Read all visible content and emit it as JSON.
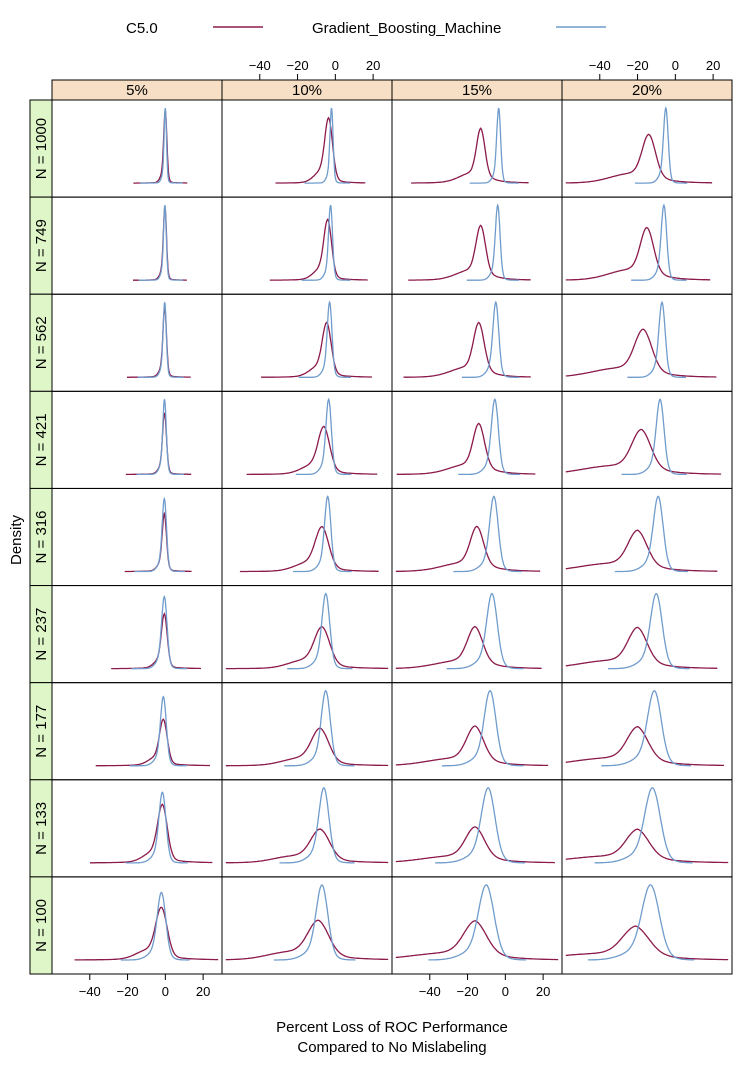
{
  "chart_data": {
    "type": "line",
    "subtype": "density-lattice",
    "title": "",
    "xlabel": "Percent Loss of ROC Performance",
    "xlabel_line2": "Compared to No Mislabeling",
    "ylabel": "Density",
    "xlim": [
      -60,
      30
    ],
    "x_ticks": [
      -40,
      -20,
      0,
      20
    ],
    "x_tick_labels": [
      "−40",
      "−20",
      "0",
      "20"
    ],
    "columns": [
      "5%",
      "10%",
      "15%",
      "20%"
    ],
    "rows": [
      "N = 1000",
      "N = 749",
      "N = 562",
      "N = 421",
      "N = 316",
      "N = 237",
      "N = 177",
      "N = 133",
      "N = 100"
    ],
    "legend": {
      "position": "top",
      "entries": [
        {
          "name": "C5.0",
          "color": "#8b1a4b"
        },
        {
          "name": "Gradient_Boosting_Machine",
          "color": "#6f9ccc"
        }
      ]
    },
    "series": [
      {
        "name": "C5.0",
        "color": "#8b1a4b",
        "panels": [
          [
            [
              0.0,
              0.8,
              -1.0,
              -1.0,
              -2,
              0.5,
              3,
              0.97,
              5,
              0.02,
              0
            ],
            [
              -3.5,
              2,
              -1.0,
              -1.8,
              -2,
              0.55,
              3,
              0.87,
              7,
              0.07,
              0
            ],
            [
              -13,
              2.2,
              -2.0,
              -2.2,
              -3,
              0.5,
              6,
              0.73,
              10,
              0.11,
              0
            ],
            [
              -14,
              3.5,
              -2.0,
              -3.0,
              -3,
              0.55,
              7,
              0.65,
              12,
              0.14,
              0
            ]
          ],
          [
            [
              -0.2,
              0.8,
              -1.0,
              -1.0,
              -2,
              0.5,
              3,
              0.98,
              5,
              0.02,
              0
            ],
            [
              -4.0,
              2,
              -1.0,
              -1.8,
              -2,
              0.55,
              3,
              0.81,
              8,
              0.07,
              0
            ],
            [
              -13,
              2.5,
              -2.0,
              -2.3,
              -3,
              0.5,
              6,
              0.73,
              10,
              0.12,
              0
            ],
            [
              -15,
              3.5,
              -2.0,
              -3.0,
              -3,
              0.55,
              7,
              0.7,
              12,
              0.16,
              0
            ]
          ],
          [
            [
              -0.3,
              0.9,
              -1.0,
              -1.0,
              -2,
              0.5,
              3,
              0.93,
              6,
              0.03,
              0
            ],
            [
              -4.5,
              2.3,
              -1.0,
              -2.0,
              -2,
              0.55,
              3,
              0.73,
              9,
              0.09,
              0
            ],
            [
              -14,
              2.8,
              -2.0,
              -2.5,
              -3,
              0.5,
              6,
              0.73,
              10,
              0.13,
              0
            ],
            [
              -17,
              4.5,
              -2.0,
              -3.2,
              -3,
              0.55,
              7,
              0.64,
              13,
              0.18,
              0
            ]
          ],
          [
            [
              -0.4,
              1,
              -1.0,
              -1.0,
              -2,
              0.5,
              3,
              0.82,
              6,
              0.03,
              0
            ],
            [
              -6,
              3,
              -1.0,
              -2.0,
              -2,
              0.55,
              3,
              0.64,
              10,
              0.12,
              0
            ],
            [
              -14,
              3,
              -2.0,
              -2.5,
              -3,
              0.5,
              6,
              0.68,
              11,
              0.16,
              0
            ],
            [
              -18,
              5,
              -2.0,
              -3.5,
              -3,
              0.55,
              7,
              0.6,
              14,
              0.21,
              0
            ]
          ],
          [
            [
              -0.5,
              1.1,
              -1.0,
              -1.2,
              -2,
              0.5,
              3,
              0.77,
              6,
              0.04,
              0
            ],
            [
              -7,
              3.5,
              -1.0,
              -2.2,
              -2,
              0.55,
              3,
              0.6,
              10,
              0.14,
              0
            ],
            [
              -15,
              3.5,
              -2.0,
              -2.5,
              -3,
              0.5,
              6,
              0.6,
              12,
              0.18,
              0
            ],
            [
              -20,
              5,
              -2.0,
              -3.5,
              -3,
              0.55,
              7,
              0.55,
              14,
              0.24,
              0
            ]
          ],
          [
            [
              -0.5,
              1.5,
              -1.0,
              -1.5,
              -2,
              0.5,
              3,
              0.73,
              8,
              0.05,
              0
            ],
            [
              -7,
              4,
              -1.0,
              -2.5,
              -2,
              0.55,
              3,
              0.56,
              12,
              0.15,
              0
            ],
            [
              -16,
              4,
              -2.0,
              -2.5,
              -3,
              0.5,
              6,
              0.56,
              12,
              0.2,
              0
            ],
            [
              -20,
              5,
              -2.0,
              -3.5,
              -3,
              0.55,
              7,
              0.55,
              14,
              0.26,
              0
            ]
          ],
          [
            [
              -1.0,
              2,
              -1.0,
              -2.0,
              -2,
              0.5,
              3,
              0.62,
              10,
              0.07,
              0
            ],
            [
              -8,
              4.5,
              -1.0,
              -2.5,
              -2,
              0.55,
              3,
              0.5,
              13,
              0.17,
              0
            ],
            [
              -16,
              4.5,
              -2.0,
              -3.0,
              -3,
              0.5,
              6,
              0.53,
              13,
              0.22,
              0
            ],
            [
              -20,
              5.5,
              -2.0,
              -3.5,
              -3,
              0.55,
              7,
              0.52,
              15,
              0.28,
              0
            ]
          ],
          [
            [
              -1.5,
              2.5,
              -1.0,
              -2.0,
              -2,
              0.5,
              3,
              0.78,
              10,
              0.1,
              0
            ],
            [
              -8,
              5,
              -1.0,
              -3.0,
              -2,
              0.55,
              3,
              0.45,
              14,
              0.2,
              0
            ],
            [
              -16,
              5,
              -2.0,
              -3.0,
              -3,
              0.5,
              6,
              0.48,
              14,
              0.24,
              0
            ],
            [
              -20,
              6,
              -2.0,
              -3.5,
              -3,
              0.55,
              7,
              0.45,
              16,
              0.3,
              0
            ]
          ],
          [
            [
              -2.0,
              3,
              -1.0,
              -2.5,
              -2,
              0.5,
              3,
              0.7,
              12,
              0.1,
              0
            ],
            [
              -9,
              5.5,
              -1.0,
              -3.0,
              -2,
              0.55,
              3,
              0.53,
              15,
              0.22,
              0
            ],
            [
              -16,
              6,
              -2.0,
              -3.0,
              -3,
              0.5,
              6,
              0.52,
              15,
              0.26,
              0
            ],
            [
              -21,
              7,
              -2.0,
              -3.5,
              -3,
              0.55,
              7,
              0.45,
              16,
              0.32,
              0
            ]
          ]
        ]
      },
      {
        "name": "Gradient_Boosting_Machine",
        "color": "#6f9ccc",
        "panels": [
          [
            [
              0.0,
              0.6,
              -1.0,
              -1.0,
              -2,
              0.5,
              3,
              1.0,
              4,
              0.01,
              0
            ],
            [
              -2.0,
              0.8,
              -1.0,
              -1.0,
              -2,
              0.5,
              3,
              1.0,
              4,
              0.01,
              0
            ],
            [
              -3.5,
              1.0,
              -1.0,
              -1.0,
              -2,
              0.5,
              3,
              1.0,
              4,
              0.01,
              0
            ],
            [
              -5,
              1.2,
              -1.0,
              -1.0,
              -2,
              0.5,
              3,
              1.0,
              4,
              0.01,
              0
            ]
          ],
          [
            [
              -0.2,
              0.7,
              -1.0,
              -1.0,
              -2,
              0.5,
              3,
              1.0,
              4,
              0.01,
              0
            ],
            [
              -2.5,
              1.0,
              -1.0,
              -1.0,
              -2,
              0.5,
              3,
              1.0,
              4,
              0.01,
              0
            ],
            [
              -4.0,
              1.2,
              -1.0,
              -1.0,
              -2,
              0.5,
              3,
              1.0,
              4,
              0.01,
              0
            ],
            [
              -6,
              1.4,
              -1.0,
              -1.0,
              -2,
              0.5,
              3,
              1.0,
              4,
              0.01,
              0
            ]
          ],
          [
            [
              -0.3,
              0.8,
              -1.0,
              -1.0,
              -2,
              0.5,
              3,
              1.0,
              4,
              0.01,
              0
            ],
            [
              -3,
              1.2,
              -1.0,
              -1.0,
              -2,
              0.5,
              3,
              1.0,
              4,
              0.01,
              0
            ],
            [
              -5,
              1.5,
              -1.0,
              -1.0,
              -2,
              0.5,
              3,
              1.0,
              4,
              0.01,
              0
            ],
            [
              -7,
              1.6,
              -1.0,
              -1.0,
              -2,
              0.5,
              3,
              1.0,
              4,
              0.01,
              0
            ]
          ],
          [
            [
              -0.4,
              0.9,
              -1.0,
              -1.0,
              -2,
              0.5,
              3,
              1.0,
              4,
              0.01,
              0
            ],
            [
              -3.5,
              1.4,
              -1.0,
              -1.0,
              -2,
              0.5,
              3,
              1.0,
              4,
              0.01,
              0
            ],
            [
              -5.5,
              1.8,
              -1.0,
              -1.0,
              -2,
              0.5,
              3,
              1.0,
              4,
              0.01,
              0
            ],
            [
              -8,
              2.0,
              -1.0,
              -1.0,
              -2,
              0.5,
              3,
              1.0,
              4,
              0.01,
              0
            ]
          ],
          [
            [
              -0.5,
              1.1,
              -1.0,
              -1.0,
              -2,
              0.5,
              3,
              0.97,
              4,
              0.01,
              0
            ],
            [
              -4,
              1.6,
              -1.0,
              -1.0,
              -2,
              0.5,
              3,
              1.0,
              4,
              0.01,
              0
            ],
            [
              -6,
              2.2,
              -1.0,
              -1.0,
              -2,
              0.5,
              3,
              1.0,
              4,
              0.01,
              0
            ],
            [
              -9,
              2.5,
              -1.0,
              -1.0,
              -2,
              0.5,
              3,
              1.0,
              4,
              0.01,
              0
            ]
          ],
          [
            [
              -0.5,
              1.4,
              -1.0,
              -1.0,
              -2,
              0.5,
              3,
              0.96,
              4,
              0.01,
              0
            ],
            [
              -5,
              2.0,
              -1.0,
              -1.0,
              -2,
              0.5,
              3,
              1.0,
              4,
              0.01,
              0
            ],
            [
              -7,
              2.7,
              -1.0,
              -1.0,
              -2,
              0.5,
              3,
              1.0,
              4,
              0.01,
              0
            ],
            [
              -10,
              3.0,
              -1.0,
              -1.0,
              -2,
              0.5,
              3,
              1.0,
              4,
              0.01,
              0
            ]
          ],
          [
            [
              -1.0,
              1.5,
              -1.0,
              -1.0,
              -2,
              0.5,
              3,
              0.92,
              4,
              0.01,
              0
            ],
            [
              -5,
              2.3,
              -1.0,
              -1.0,
              -2,
              0.5,
              3,
              1.0,
              4,
              0.01,
              0
            ],
            [
              -8,
              3.0,
              -1.0,
              -1.0,
              -2,
              0.5,
              3,
              1.0,
              4,
              0.01,
              0
            ],
            [
              -11,
              3.5,
              -1.0,
              -1.0,
              -2,
              0.5,
              3,
              1.0,
              4,
              0.01,
              0
            ]
          ],
          [
            [
              -1.5,
              1.8,
              -1.0,
              -1.0,
              -2,
              0.5,
              3,
              0.94,
              4,
              0.01,
              0
            ],
            [
              -6,
              2.6,
              -1.0,
              -1.0,
              -2,
              0.5,
              3,
              1.0,
              4,
              0.01,
              0
            ],
            [
              -9,
              3.5,
              -1.0,
              -1.0,
              -2,
              0.5,
              3,
              1.0,
              4,
              0.01,
              0
            ],
            [
              -12,
              4.0,
              -1.0,
              -1.0,
              -2,
              0.5,
              3,
              1.0,
              4,
              0.01,
              0
            ]
          ],
          [
            [
              -2.0,
              2.2,
              -1.0,
              -1.0,
              -2,
              0.5,
              3,
              0.9,
              4,
              0.01,
              0
            ],
            [
              -7,
              3.0,
              -1.0,
              -1.0,
              -2,
              0.5,
              3,
              1.0,
              4,
              0.01,
              0
            ],
            [
              -10,
              4.0,
              -1.0,
              -1.0,
              -2,
              0.5,
              3,
              1.0,
              4,
              0.01,
              0
            ],
            [
              -13,
              4.5,
              -1.0,
              -1.0,
              -2,
              0.5,
              3,
              1.0,
              4,
              0.01,
              0
            ]
          ]
        ]
      }
    ],
    "colors": {
      "strip_top": "#f6dfc4",
      "strip_left": "#dff7c8",
      "panel_border": "#000000"
    }
  }
}
